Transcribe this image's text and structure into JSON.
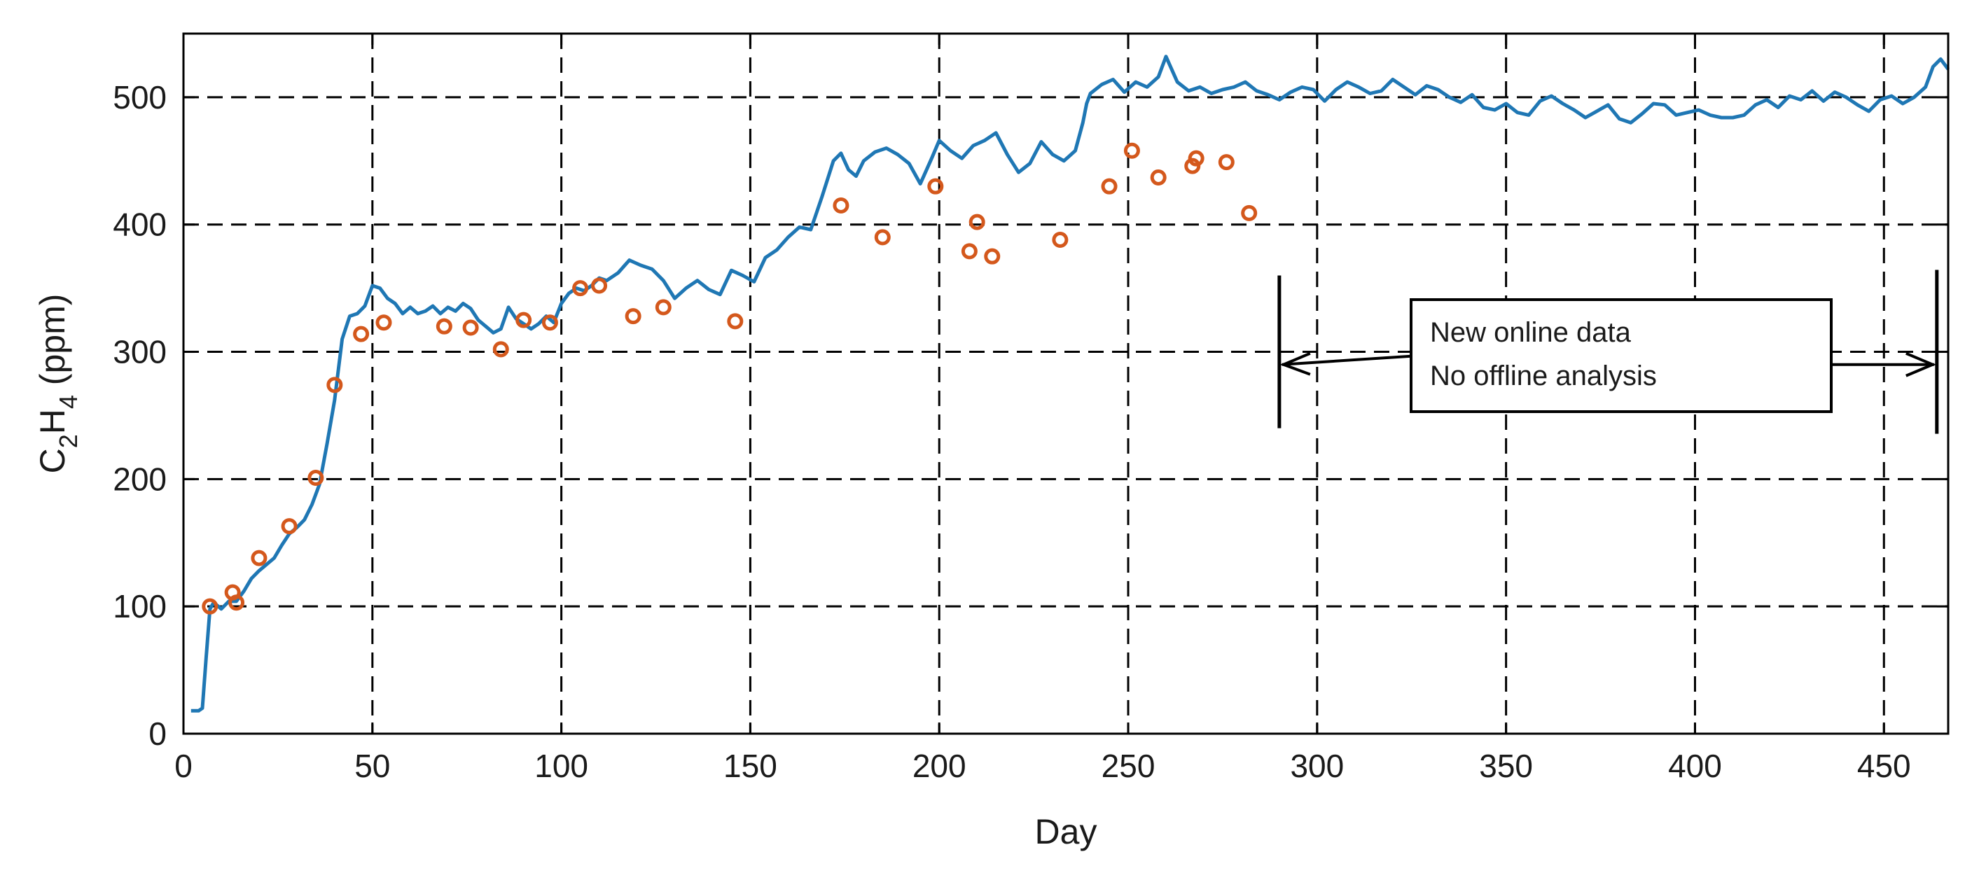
{
  "colors": {
    "online": "#1f77b4",
    "offline": "#d4581c",
    "grid": "#000000",
    "axis": "#000000",
    "annotation": "#000000"
  },
  "chart_data": {
    "type": "line",
    "title": "",
    "xlabel": "Day",
    "ylabel": {
      "base1": "C",
      "sub1": "2",
      "base2": "H",
      "sub2": "4",
      "unit": " (ppm)"
    },
    "xlim": [
      0,
      467
    ],
    "ylim": [
      0,
      550
    ],
    "xticks": [
      0,
      50,
      100,
      150,
      200,
      250,
      300,
      350,
      400,
      450
    ],
    "yticks": [
      0,
      100,
      200,
      300,
      400,
      500
    ],
    "grid": true,
    "grid_style": "dashed",
    "series": [
      {
        "kind": "line",
        "x": [
          2,
          4,
          5,
          6,
          7,
          8,
          10,
          12,
          14,
          16,
          18,
          20,
          22,
          24,
          26,
          28,
          30,
          32,
          34,
          36,
          38,
          40,
          42,
          44,
          46,
          48,
          50,
          52,
          54,
          56,
          58,
          60,
          62,
          64,
          66,
          68,
          70,
          72,
          74,
          76,
          78,
          80,
          82,
          84,
          86,
          88,
          90,
          92,
          94,
          96,
          98,
          100,
          102,
          104,
          106,
          108,
          110,
          112,
          115,
          118,
          121,
          124,
          127,
          130,
          133,
          136,
          139,
          142,
          145,
          148,
          151,
          154,
          157,
          160,
          163,
          166,
          169,
          172,
          174,
          176,
          178,
          180,
          183,
          186,
          189,
          192,
          195,
          198,
          200,
          203,
          206,
          209,
          212,
          215,
          218,
          221,
          224,
          227,
          230,
          233,
          236,
          238,
          239,
          240,
          243,
          246,
          249,
          252,
          255,
          258,
          260,
          263,
          266,
          269,
          272,
          275,
          278,
          281,
          284,
          287,
          290,
          293,
          296,
          299,
          302,
          305,
          308,
          311,
          314,
          317,
          320,
          323,
          326,
          329,
          332,
          335,
          338,
          341,
          344,
          347,
          350,
          353,
          356,
          359,
          362,
          365,
          368,
          371,
          374,
          377,
          380,
          383,
          386,
          389,
          392,
          395,
          398,
          401,
          404,
          407,
          410,
          413,
          416,
          419,
          422,
          425,
          428,
          431,
          434,
          437,
          440,
          443,
          446,
          449,
          452,
          455,
          458,
          461,
          463,
          465,
          467
        ],
        "y": [
          18,
          18,
          20,
          60,
          98,
          103,
          98,
          104,
          104,
          112,
          122,
          128,
          133,
          138,
          148,
          157,
          162,
          168,
          180,
          196,
          228,
          262,
          310,
          328,
          330,
          336,
          352,
          350,
          342,
          338,
          330,
          335,
          330,
          332,
          336,
          330,
          335,
          332,
          338,
          334,
          325,
          320,
          315,
          318,
          335,
          326,
          322,
          318,
          322,
          328,
          323,
          338,
          346,
          350,
          348,
          352,
          358,
          356,
          362,
          372,
          368,
          365,
          356,
          342,
          350,
          356,
          349,
          345,
          364,
          360,
          355,
          374,
          380,
          390,
          398,
          396,
          422,
          450,
          456,
          443,
          438,
          450,
          457,
          460,
          455,
          448,
          432,
          452,
          466,
          458,
          452,
          462,
          466,
          472,
          455,
          441,
          448,
          465,
          455,
          450,
          458,
          480,
          495,
          503,
          510,
          514,
          504,
          512,
          508,
          516,
          532,
          512,
          505,
          508,
          503,
          506,
          508,
          512,
          505,
          502,
          498,
          504,
          508,
          506,
          497,
          506,
          512,
          508,
          503,
          505,
          514,
          508,
          502,
          509,
          506,
          500,
          496,
          502,
          492,
          490,
          495,
          488,
          486,
          497,
          501,
          495,
          490,
          484,
          489,
          494,
          483,
          480,
          487,
          495,
          494,
          486,
          488,
          490,
          486,
          484,
          484,
          486,
          494,
          498,
          492,
          501,
          498,
          505,
          497,
          504,
          500,
          494,
          489,
          498,
          501,
          495,
          500,
          508,
          524,
          530,
          522
        ]
      },
      {
        "kind": "scatter",
        "x": [
          7,
          13,
          14,
          20,
          28,
          35,
          40,
          47,
          53,
          69,
          76,
          84,
          90,
          97,
          105,
          110,
          119,
          127,
          146,
          174,
          185,
          199,
          208,
          210,
          214,
          232,
          245,
          251,
          258,
          267,
          268,
          276,
          282
        ],
        "y": [
          100,
          111,
          103,
          138,
          163,
          201,
          274,
          314,
          323,
          320,
          319,
          302,
          325,
          323,
          350,
          352,
          328,
          335,
          324,
          415,
          390,
          430,
          379,
          402,
          375,
          388,
          430,
          458,
          437,
          446,
          452,
          449,
          409
        ]
      }
    ],
    "annotation": {
      "lines": [
        "New  online data",
        "No offline analysis"
      ],
      "start_x": 290,
      "end_x": 464,
      "arrow_y": 290,
      "bar_top": 360,
      "bar_bottom": 240
    }
  }
}
